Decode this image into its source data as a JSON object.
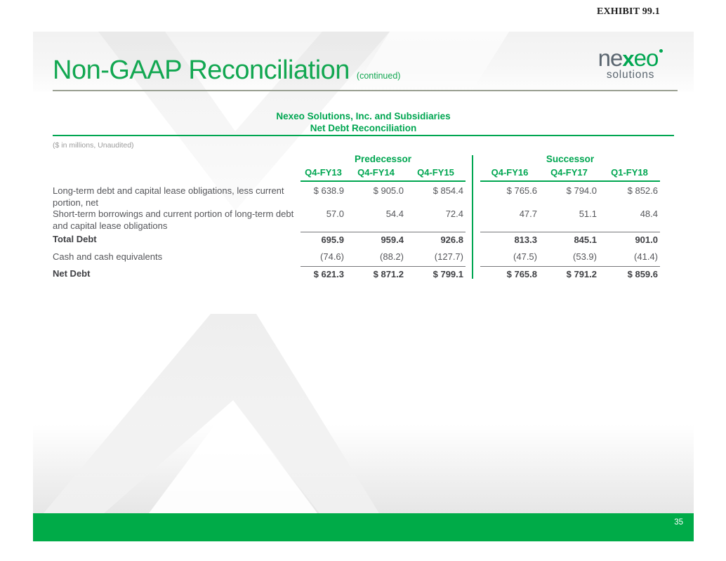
{
  "exhibit_label": "EXHIBIT 99.1",
  "page_number": "35",
  "header": {
    "title": "Non-GAAP Reconciliation",
    "title_suffix": "(continued)",
    "logo": {
      "ne": "ne",
      "x": "x",
      "eo": "eo",
      "solutions": "solutions"
    }
  },
  "table": {
    "heading_line1": "Nexeo Solutions, Inc. and Subsidiaries",
    "heading_line2": "Net Debt Reconciliation",
    "note": "($ in millions, Unaudited)",
    "groups": [
      {
        "label": "Predecessor"
      },
      {
        "label": "Successor"
      }
    ],
    "columns": [
      "Q4-FY13",
      "Q4-FY14",
      "Q4-FY15",
      "Q4-FY16",
      "Q4-FY17",
      "Q1-FY18"
    ],
    "rows": [
      {
        "label": "Long-term debt and capital lease obligations, less current portion, net",
        "values": [
          "$ 638.9",
          "$ 905.0",
          "$ 854.4",
          "$ 765.6",
          "$ 794.0",
          "$ 852.6"
        ]
      },
      {
        "label": "Short-term borrowings and current portion of long-term debt and capital lease obligations",
        "values": [
          "57.0",
          "54.4",
          "72.4",
          "47.7",
          "51.1",
          "48.4"
        ]
      },
      {
        "label": "Total Debt",
        "values": [
          "695.9",
          "959.4",
          "926.8",
          "813.3",
          "845.1",
          "901.0"
        ]
      },
      {
        "label": "Cash and cash equivalents",
        "values": [
          "(74.6)",
          "(88.2)",
          "(127.7)",
          "(47.5)",
          "(53.9)",
          "(41.4)"
        ]
      },
      {
        "label": "Net Debt",
        "values": [
          "$ 621.3",
          "$ 871.2",
          "$ 799.1",
          "$ 765.8",
          "$ 791.2",
          "$ 859.6"
        ]
      }
    ]
  },
  "colors": {
    "green": "#00a651",
    "footer_bar_green": "#00ab48",
    "body_text": "#55565a",
    "logo_gray": "#5b6670"
  }
}
